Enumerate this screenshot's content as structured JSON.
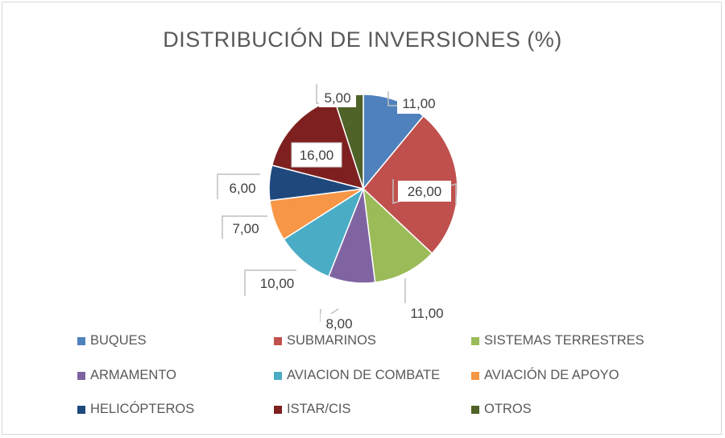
{
  "chart_data": {
    "type": "pie",
    "title": "DISTRIBUCIÓN DE INVERSIONES (%)",
    "categories": [
      "BUQUES",
      "SUBMARINOS",
      "SISTEMAS TERRESTRES",
      "ARMAMENTO",
      "AVIACION DE COMBATE",
      "AVIACIÓN DE APOYO",
      "HELICÓPTEROS",
      "ISTAR/CIS",
      "OTROS"
    ],
    "values": [
      11,
      26,
      11,
      8,
      10,
      7,
      6,
      16,
      5
    ],
    "data_labels": [
      "11,00",
      "26,00",
      "11,00",
      "8,00",
      "10,00",
      "7,00",
      "6,00",
      "16,00",
      "5,00"
    ],
    "colors": [
      "#4F81BD",
      "#C0504D",
      "#9BBB59",
      "#8064A2",
      "#4BACC6",
      "#F79646",
      "#1F497D",
      "#7F2020",
      "#4F6228"
    ],
    "legend_position": "bottom"
  }
}
